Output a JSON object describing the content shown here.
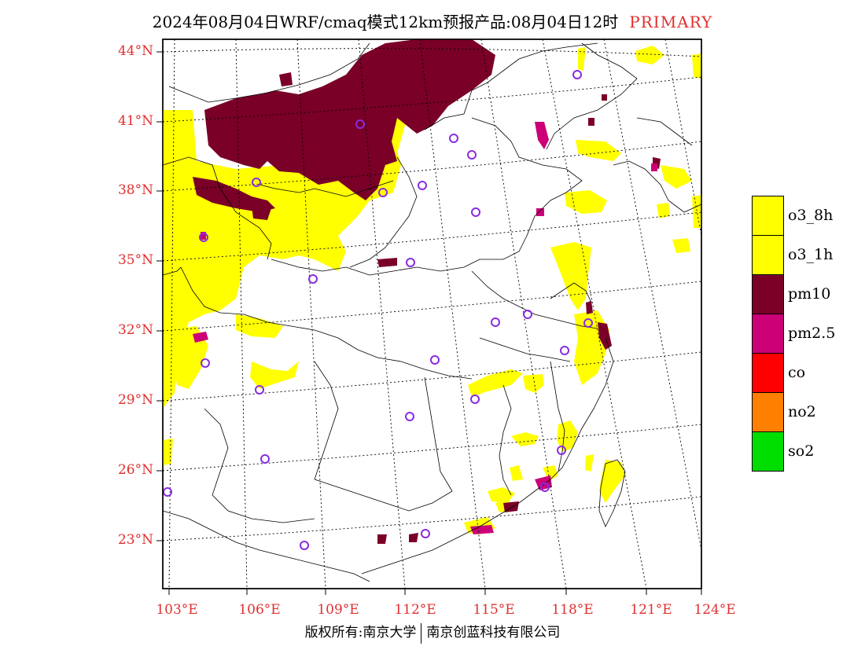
{
  "header": {
    "title": "2024年08月04日WRF/cmaq模式12km预报产品:08月04日12时",
    "tag": "PRIMARY"
  },
  "axes": {
    "lat_labels": [
      "44°N",
      "41°N",
      "38°N",
      "35°N",
      "32°N",
      "29°N",
      "26°N",
      "23°N"
    ],
    "lon_labels": [
      "103°E",
      "106°E",
      "109°E",
      "112°E",
      "115°E",
      "118°E",
      "121°E",
      "124°E"
    ]
  },
  "legend": {
    "items": [
      {
        "label": "o3_8h",
        "color": "#ffff00"
      },
      {
        "label": "o3_1h",
        "color": "#ffff00"
      },
      {
        "label": "pm10",
        "color": "#7a0028"
      },
      {
        "label": "pm2.5",
        "color": "#cc0077"
      },
      {
        "label": "co",
        "color": "#ff0000"
      },
      {
        "label": "no2",
        "color": "#ff8000"
      },
      {
        "label": "so2",
        "color": "#00dd00"
      }
    ]
  },
  "footer": {
    "left": "版权所有:南京大学",
    "right": "南京创蓝科技有限公司"
  },
  "colors": {
    "o3": "#ffff00",
    "pm10": "#7a0028",
    "pm25": "#cc0077",
    "axis_label": "#e03030",
    "station": "#8a2be2"
  }
}
